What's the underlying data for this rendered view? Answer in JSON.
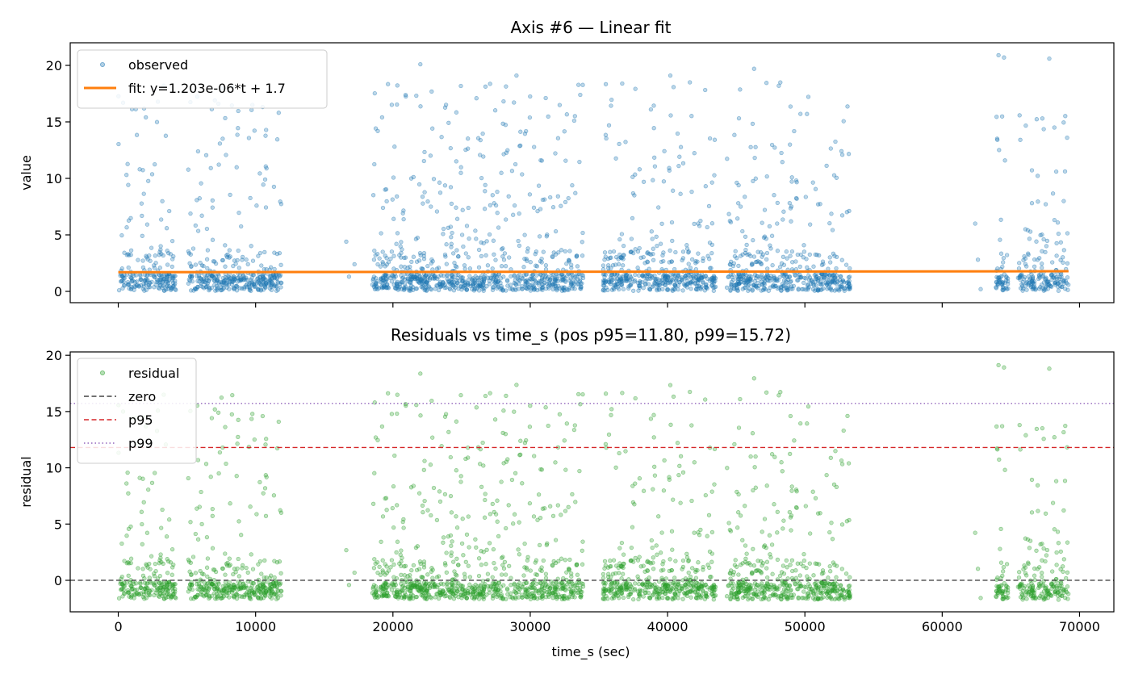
{
  "colors": {
    "observed": "#1f77b4",
    "fit": "#ff7f0e",
    "residual": "#2ca02c",
    "zero": "#444444",
    "p95": "#d62728",
    "p99": "#9467bd"
  },
  "chart_data": [
    {
      "type": "scatter",
      "title": "Axis #6 — Linear fit",
      "xlabel": "",
      "ylabel": "value",
      "xlim": [
        -3500,
        72500
      ],
      "ylim": [
        -1,
        22
      ],
      "x_ticks": [
        0,
        10000,
        20000,
        30000,
        40000,
        50000,
        60000,
        70000
      ],
      "y_ticks": [
        0,
        5,
        10,
        15,
        20
      ],
      "x_ticklabels_visible": false,
      "legend_position": "top-left",
      "series": [
        {
          "name": "observed",
          "kind": "scatter",
          "color": "#1f77b4"
        },
        {
          "name": "fit: y=1.203e-06*t + 1.7",
          "kind": "line",
          "color": "#ff7f0e",
          "slope": 1.203e-06,
          "intercept": 1.7
        }
      ],
      "time_segments": [
        [
          0,
          4200
        ],
        [
          5100,
          11900
        ],
        [
          18500,
          33900
        ],
        [
          35300,
          43500
        ],
        [
          44300,
          53300
        ],
        [
          63900,
          64800
        ],
        [
          65500,
          69200
        ]
      ],
      "sparse_points": [
        [
          16600,
          4.4
        ],
        [
          16800,
          1.3
        ],
        [
          17200,
          2.4
        ],
        [
          62400,
          6.0
        ],
        [
          62600,
          2.8
        ],
        [
          62800,
          0.2
        ]
      ],
      "notable_points": [
        [
          64100,
          20.9
        ],
        [
          64500,
          20.7
        ],
        [
          67800,
          20.6
        ],
        [
          22000,
          20.1
        ],
        [
          46300,
          19.7
        ],
        [
          29000,
          19.1
        ],
        [
          40200,
          19.1
        ]
      ]
    },
    {
      "type": "scatter",
      "title": "Residuals vs time_s (pos p95=11.80, p99=15.72)",
      "xlabel": "time_s (sec)",
      "ylabel": "residual",
      "xlim": [
        -3500,
        72500
      ],
      "ylim": [
        -2.8,
        20.3
      ],
      "x_ticks": [
        0,
        10000,
        20000,
        30000,
        40000,
        50000,
        60000,
        70000
      ],
      "x_ticklabels": [
        "0",
        "10000",
        "20000",
        "30000",
        "40000",
        "50000",
        "60000",
        "70000"
      ],
      "y_ticks": [
        0,
        5,
        10,
        15,
        20
      ],
      "legend_position": "top-left",
      "series": [
        {
          "name": "residual",
          "kind": "scatter",
          "color": "#2ca02c"
        },
        {
          "name": "zero",
          "kind": "hline",
          "y": 0,
          "style": "dashed",
          "color": "#444444"
        },
        {
          "name": "p95",
          "kind": "hline",
          "y": 11.8,
          "style": "dashed",
          "color": "#d62728"
        },
        {
          "name": "p99",
          "kind": "hline",
          "y": 15.72,
          "style": "dotted",
          "color": "#9467bd"
        }
      ]
    }
  ]
}
